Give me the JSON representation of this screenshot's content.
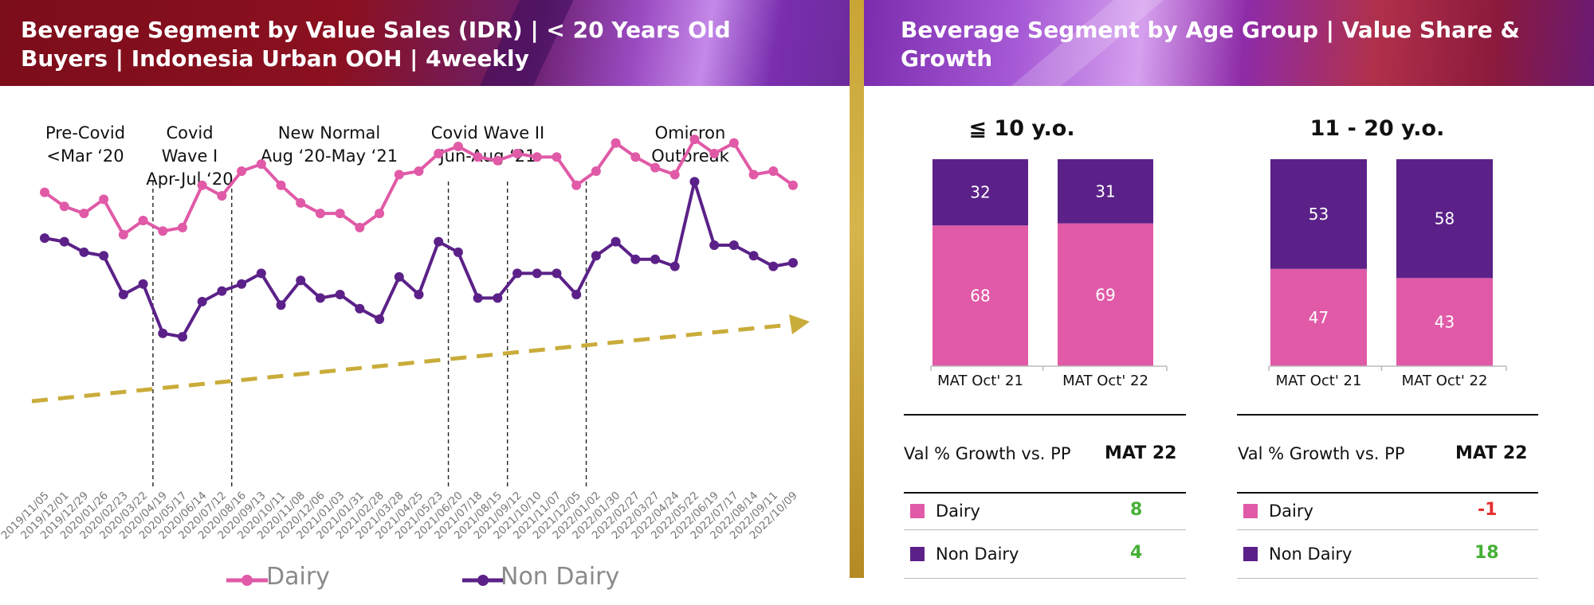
{
  "left_title_line1": "Beverage Segment by Value Sales (IDR) | < 20 Years Old",
  "left_title_line2": "Buyers | Indonesia Urban OOH | 4weekly",
  "right_title": "Beverage Segment by Age Group | Value Share & Growth",
  "colors": {
    "dairy": "#e05aa7",
    "non_dairy": "#5b2188",
    "trend": "#c9ac3a",
    "positive": "#45b035",
    "negative": "#e4312f"
  },
  "periods": [
    {
      "line1": "Pre-Covid",
      "line2": "<Mar ‘20",
      "line3": ""
    },
    {
      "line1": "Covid",
      "line2": "Wave I",
      "line3": "Apr-Jul ‘20"
    },
    {
      "line1": "New Normal",
      "line2": "Aug ‘20-May ‘21",
      "line3": ""
    },
    {
      "line1": "Covid Wave II",
      "line2": "Jun-Aug ‘21",
      "line3": ""
    },
    {
      "line1": "Omicron",
      "line2": "Outbreak",
      "line3": ""
    }
  ],
  "chart_data": [
    {
      "type": "line",
      "x": [
        "2019/11/05",
        "2019/12/01",
        "2019/12/29",
        "2020/01/26",
        "2020/02/23",
        "2020/03/22",
        "2020/04/19",
        "2020/05/17",
        "2020/06/14",
        "2020/07/12",
        "2020/08/16",
        "2020/09/13",
        "2020/10/11",
        "2020/11/08",
        "2020/12/06",
        "2021/01/03",
        "2021/01/31",
        "2021/02/28",
        "2021/03/28",
        "2021/04/25",
        "2021/05/23",
        "2021/06/20",
        "2021/07/18",
        "2021/08/15",
        "2021/09/12",
        "2021/10/10",
        "2021/11/07",
        "2021/12/05",
        "2022/01/02",
        "2022/01/30",
        "2022/02/27",
        "2022/03/27",
        "2022/04/24",
        "2022/05/22",
        "2022/06/19",
        "2022/07/17",
        "2022/08/14",
        "2022/09/11",
        "2022/10/09"
      ],
      "series": [
        {
          "name": "Dairy",
          "values": [
            70,
            66,
            64,
            68,
            58,
            62,
            59,
            60,
            72,
            69,
            76,
            78,
            72,
            67,
            64,
            64,
            60,
            64,
            75,
            76,
            81,
            83,
            80,
            79,
            81,
            80,
            80,
            72,
            76,
            84,
            80,
            77,
            75,
            85,
            81,
            84,
            75,
            76,
            72
          ]
        },
        {
          "name": "Non Dairy",
          "values": [
            57,
            56,
            53,
            52,
            41,
            44,
            30,
            29,
            39,
            42,
            44,
            47,
            38,
            45,
            40,
            41,
            37,
            34,
            46,
            41,
            56,
            53,
            40,
            40,
            47,
            47,
            47,
            41,
            52,
            56,
            51,
            51,
            49,
            73,
            55,
            55,
            52,
            49,
            50
          ]
        }
      ],
      "trend_line": {
        "style": "dashed",
        "direction": "upward"
      },
      "period_dividers_after": [
        "2020/03/22",
        "2020/07/12",
        "2021/05/23",
        "2021/08/15",
        "2021/12/05"
      ],
      "legend": [
        "Dairy",
        "Non Dairy"
      ],
      "legend_position": "bottom"
    },
    {
      "type": "bar",
      "stacked": true,
      "percent": true,
      "title": "≦ 10 y.o.",
      "categories": [
        "MAT Oct' 21",
        "MAT Oct' 22"
      ],
      "series": [
        {
          "name": "Dairy",
          "values": [
            68,
            69
          ]
        },
        {
          "name": "Non Dairy",
          "values": [
            32,
            31
          ]
        }
      ]
    },
    {
      "type": "bar",
      "stacked": true,
      "percent": true,
      "title": "11 - 20 y.o.",
      "categories": [
        "MAT Oct' 21",
        "MAT Oct' 22"
      ],
      "series": [
        {
          "name": "Dairy",
          "values": [
            47,
            43
          ]
        },
        {
          "name": "Non Dairy",
          "values": [
            53,
            58
          ]
        }
      ]
    }
  ],
  "growth_tables": [
    {
      "header_label": "Val % Growth vs. PP",
      "header_value": "MAT 22",
      "rows": [
        {
          "label": "Dairy",
          "value": "8",
          "sign": "positive"
        },
        {
          "label": "Non Dairy",
          "value": "4",
          "sign": "positive"
        }
      ]
    },
    {
      "header_label": "Val % Growth vs. PP",
      "header_value": "MAT 22",
      "rows": [
        {
          "label": "Dairy",
          "value": "-1",
          "sign": "negative"
        },
        {
          "label": "Non Dairy",
          "value": "18",
          "sign": "positive"
        }
      ]
    }
  ]
}
